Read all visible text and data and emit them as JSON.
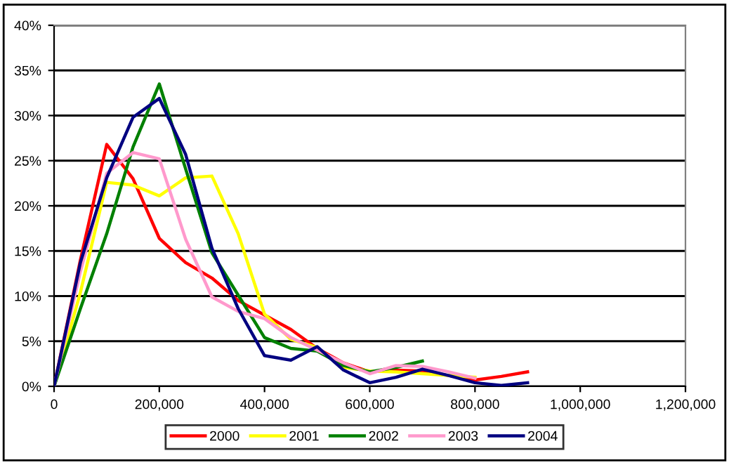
{
  "chart_data": {
    "type": "line",
    "x": [
      0,
      50000,
      100000,
      150000,
      200000,
      250000,
      300000,
      350000,
      400000,
      450000,
      500000,
      550000,
      600000,
      650000,
      700000,
      750000,
      800000,
      850000,
      900000
    ],
    "series": [
      {
        "name": "2000",
        "color": "#ff0000",
        "values": [
          0,
          14,
          26.8,
          23,
          16.4,
          13.7,
          12,
          9.5,
          7.9,
          6.3,
          4.2,
          2.6,
          1.6,
          1.8,
          1.7,
          1.2,
          0.7,
          1.1,
          1.6
        ]
      },
      {
        "name": "2001",
        "color": "#ffff00",
        "values": [
          0,
          10.4,
          22.6,
          22.3,
          21.1,
          23.1,
          23.3,
          16.9,
          8,
          5.2,
          4.3,
          2.1,
          1.7,
          1.6,
          1.4,
          1.2,
          1,
          null,
          null
        ]
      },
      {
        "name": "2002",
        "color": "#008000",
        "values": [
          0,
          8.6,
          16.9,
          26.5,
          33.5,
          24.1,
          14.8,
          10.1,
          5.4,
          4.2,
          3.9,
          2.3,
          1.6,
          2.1,
          2.8,
          null,
          null,
          null,
          null
        ]
      },
      {
        "name": "2003",
        "color": "#ff99cc",
        "values": [
          0,
          12.7,
          23.6,
          25.9,
          25.2,
          16.3,
          9.9,
          8.3,
          7.5,
          5.4,
          4,
          2.6,
          1.4,
          2.3,
          2.2,
          1.6,
          0.9,
          null,
          null
        ]
      },
      {
        "name": "2004",
        "color": "#000080",
        "values": [
          0,
          13.7,
          23.1,
          29.8,
          31.9,
          25.7,
          15.3,
          8.6,
          3.4,
          2.9,
          4.4,
          1.8,
          0.4,
          1,
          1.9,
          1.2,
          0.4,
          0.1,
          0.4
        ]
      }
    ],
    "xlim": [
      0,
      1200000
    ],
    "xticks": [
      0,
      {
        "value": 200000,
        "label": "200,000"
      },
      {
        "value": 400000,
        "label": "400,000"
      },
      {
        "value": 600000,
        "label": "600,000"
      },
      {
        "value": 800000,
        "label": "800,000"
      },
      {
        "value": 1000000,
        "label": "1,000,000"
      },
      {
        "value": 1200000,
        "label": "1,200,000"
      }
    ],
    "ylim": [
      0,
      40
    ],
    "yticks": [
      {
        "value": 0,
        "label": "0%"
      },
      {
        "value": 5,
        "label": "5%"
      },
      {
        "value": 10,
        "label": "10%"
      },
      {
        "value": 15,
        "label": "15%"
      },
      {
        "value": 20,
        "label": "20%"
      },
      {
        "value": 25,
        "label": "25%"
      },
      {
        "value": 30,
        "label": "30%"
      },
      {
        "value": 35,
        "label": "35%"
      },
      {
        "value": 40,
        "label": "40%"
      }
    ],
    "grid": "y",
    "legend": "bottom",
    "marker": "none",
    "line_style": "solid"
  }
}
